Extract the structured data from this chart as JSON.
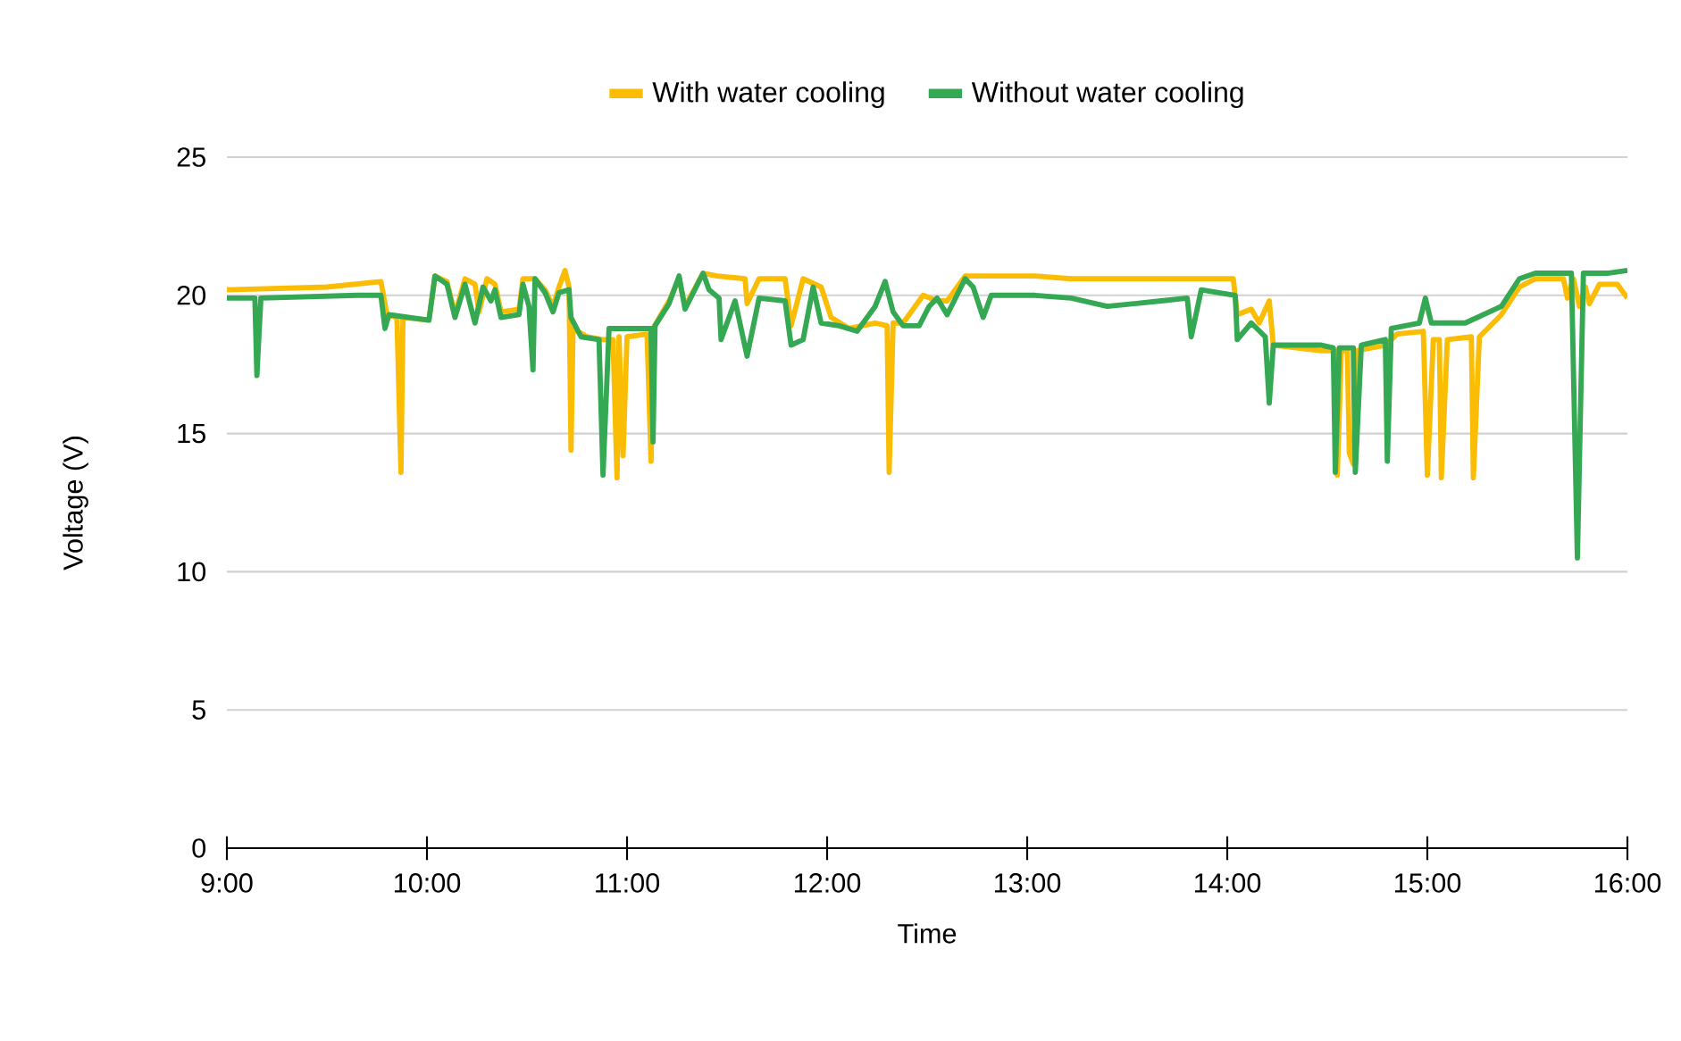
{
  "chart_data": {
    "type": "line",
    "xlabel": "Time",
    "ylabel": "Voltage (V)",
    "xlim": [
      9,
      16
    ],
    "ylim": [
      0,
      25
    ],
    "xticks": [
      {
        "value": 9,
        "label": "9:00"
      },
      {
        "value": 10,
        "label": "10:00"
      },
      {
        "value": 11,
        "label": "11:00"
      },
      {
        "value": 12,
        "label": "12:00"
      },
      {
        "value": 13,
        "label": "13:00"
      },
      {
        "value": 14,
        "label": "14:00"
      },
      {
        "value": 15,
        "label": "15:00"
      },
      {
        "value": 16,
        "label": "16:00"
      }
    ],
    "yticks": [
      0,
      5,
      10,
      15,
      20,
      25
    ],
    "grid": "y",
    "legend": "top",
    "marker": "none",
    "line_style": "solid",
    "series": [
      {
        "name": "With water cooling",
        "color": "#fbbc04",
        "x": [
          9.0,
          9.5,
          9.77,
          9.8,
          9.85,
          9.87,
          9.88,
          10.01,
          10.04,
          10.1,
          10.14,
          10.19,
          10.24,
          10.26,
          10.3,
          10.34,
          10.37,
          10.46,
          10.48,
          10.54,
          10.59,
          10.63,
          10.66,
          10.69,
          10.71,
          10.72,
          10.73,
          10.8,
          10.88,
          10.93,
          10.95,
          10.96,
          10.98,
          11.0,
          11.1,
          11.12,
          11.13,
          11.21,
          11.26,
          11.29,
          11.38,
          11.45,
          11.59,
          11.6,
          11.66,
          11.79,
          11.82,
          11.88,
          11.97,
          12.02,
          12.11,
          12.24,
          12.3,
          12.31,
          12.33,
          12.38,
          12.48,
          12.55,
          12.6,
          12.69,
          13.04,
          13.22,
          13.6,
          14.03,
          14.05,
          14.12,
          14.16,
          14.21,
          14.23,
          14.47,
          14.54,
          14.55,
          14.57,
          14.6,
          14.61,
          14.63,
          14.65,
          14.79,
          14.85,
          14.98,
          15.0,
          15.03,
          15.06,
          15.07,
          15.1,
          15.22,
          15.23,
          15.26,
          15.37,
          15.46,
          15.54,
          15.68,
          15.7,
          15.73,
          15.76,
          15.79,
          15.81,
          15.86,
          15.95,
          16.0
        ],
        "values": [
          20.2,
          20.3,
          20.5,
          19.3,
          19.2,
          13.6,
          19.2,
          19.1,
          20.7,
          20.5,
          19.3,
          20.6,
          20.4,
          19.4,
          20.6,
          20.4,
          19.4,
          19.5,
          20.6,
          20.6,
          20.2,
          19.6,
          20.3,
          20.9,
          20.3,
          14.4,
          18.8,
          18.5,
          18.4,
          18.4,
          13.4,
          18.5,
          14.2,
          18.5,
          18.6,
          14.0,
          18.8,
          19.8,
          20.6,
          19.6,
          20.8,
          20.7,
          20.6,
          19.7,
          20.6,
          20.6,
          18.9,
          20.6,
          20.3,
          19.2,
          18.8,
          19.0,
          18.9,
          13.6,
          19.0,
          19.0,
          20.0,
          19.8,
          19.8,
          20.7,
          20.7,
          20.6,
          20.6,
          20.6,
          19.3,
          19.5,
          19.0,
          19.8,
          18.2,
          18.0,
          18.0,
          13.5,
          18.0,
          18.0,
          14.3,
          13.9,
          18.0,
          18.2,
          18.6,
          18.7,
          13.5,
          18.4,
          18.4,
          13.4,
          18.4,
          18.5,
          13.4,
          18.5,
          19.3,
          20.3,
          20.6,
          20.6,
          19.9,
          20.6,
          19.6,
          20.3,
          19.7,
          20.4,
          20.4,
          19.9
        ]
      },
      {
        "name": "Without water cooling",
        "color": "#34a853",
        "x": [
          9.0,
          9.14,
          9.15,
          9.17,
          9.65,
          9.77,
          9.79,
          9.81,
          10.01,
          10.04,
          10.1,
          10.14,
          10.19,
          10.24,
          10.28,
          10.32,
          10.34,
          10.37,
          10.46,
          10.48,
          10.51,
          10.53,
          10.54,
          10.59,
          10.63,
          10.66,
          10.71,
          10.72,
          10.77,
          10.86,
          10.88,
          10.91,
          10.99,
          11.12,
          11.13,
          11.14,
          11.21,
          11.26,
          11.29,
          11.38,
          11.41,
          11.46,
          11.47,
          11.54,
          11.6,
          11.66,
          11.79,
          11.82,
          11.88,
          11.93,
          11.97,
          12.06,
          12.15,
          12.24,
          12.29,
          12.33,
          12.38,
          12.46,
          12.51,
          12.55,
          12.6,
          12.69,
          12.73,
          12.78,
          12.82,
          13.04,
          13.22,
          13.4,
          13.67,
          13.8,
          13.82,
          13.87,
          14.04,
          14.05,
          14.12,
          14.19,
          14.21,
          14.23,
          14.47,
          14.53,
          14.54,
          14.56,
          14.63,
          14.64,
          14.67,
          14.79,
          14.8,
          14.82,
          14.96,
          14.99,
          15.02,
          15.19,
          15.37,
          15.46,
          15.54,
          15.72,
          15.75,
          15.78,
          15.9,
          16.0
        ],
        "values": [
          19.9,
          19.9,
          17.1,
          19.9,
          20.0,
          20.0,
          18.8,
          19.3,
          19.1,
          20.7,
          20.4,
          19.2,
          20.4,
          19.0,
          20.3,
          19.8,
          20.2,
          19.2,
          19.3,
          20.4,
          19.6,
          17.3,
          20.6,
          20.1,
          19.4,
          20.1,
          20.2,
          19.2,
          18.5,
          18.4,
          13.5,
          18.8,
          18.8,
          18.8,
          14.7,
          18.9,
          19.7,
          20.7,
          19.5,
          20.8,
          20.2,
          19.9,
          18.4,
          19.8,
          17.8,
          19.9,
          19.8,
          18.2,
          18.4,
          20.3,
          19.0,
          18.9,
          18.7,
          19.6,
          20.5,
          19.4,
          18.9,
          18.9,
          19.6,
          19.9,
          19.3,
          20.6,
          20.3,
          19.2,
          20.0,
          20.0,
          19.9,
          19.6,
          19.8,
          19.9,
          18.5,
          20.2,
          20.0,
          18.4,
          19.0,
          18.5,
          16.1,
          18.2,
          18.2,
          18.1,
          13.6,
          18.1,
          18.1,
          13.6,
          18.2,
          18.4,
          14.0,
          18.8,
          19.0,
          19.9,
          19.0,
          19.0,
          19.6,
          20.6,
          20.8,
          20.8,
          10.5,
          20.8,
          20.8,
          20.9
        ]
      }
    ]
  }
}
